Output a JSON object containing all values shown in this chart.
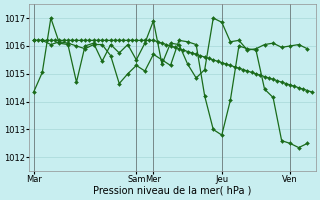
{
  "background_color": "#c8eef0",
  "grid_color": "#a8d8d8",
  "line_color": "#1a6b1a",
  "marker": "D",
  "marker_size": 2.0,
  "linewidth": 0.9,
  "xlabel": "Pression niveau de la mer( hPa )",
  "ylim": [
    1011.5,
    1017.5
  ],
  "yticks": [
    1012,
    1013,
    1014,
    1015,
    1016,
    1017
  ],
  "xlabel_fontsize": 7,
  "tick_fontsize": 6,
  "x_day_labels": [
    "Mar",
    "Sam",
    "Mer",
    "Jeu",
    "Ven"
  ],
  "x_day_positions": [
    0,
    12,
    14,
    22,
    30
  ],
  "xlim": [
    -0.5,
    33
  ],
  "vline_color": "#505050",
  "lines": [
    {
      "x": [
        0,
        0.5,
        1,
        1.5,
        2,
        2.5,
        3,
        3.5,
        4,
        4.5,
        5,
        5.5,
        6,
        6.5,
        7,
        7.5,
        8,
        8.5,
        9,
        9.5,
        10,
        10.5,
        11,
        11.5,
        12,
        12.5,
        13,
        13.5,
        14,
        14.5,
        15,
        15.5,
        16,
        16.5,
        17,
        17.5,
        18,
        18.5,
        19,
        19.5,
        20,
        20.5,
        21,
        21.5,
        22,
        22.5,
        23,
        23.5,
        24,
        24.5,
        25,
        25.5,
        26,
        26.5,
        27,
        27.5,
        28,
        28.5,
        29,
        29.5,
        30,
        30.5,
        31,
        31.5,
        32,
        32.5
      ],
      "y": [
        1016.2,
        1016.2,
        1016.2,
        1016.2,
        1016.2,
        1016.2,
        1016.2,
        1016.2,
        1016.2,
        1016.2,
        1016.2,
        1016.2,
        1016.2,
        1016.2,
        1016.2,
        1016.2,
        1016.2,
        1016.2,
        1016.2,
        1016.2,
        1016.2,
        1016.2,
        1016.2,
        1016.2,
        1016.2,
        1016.2,
        1016.2,
        1016.2,
        1016.2,
        1016.15,
        1016.1,
        1016.05,
        1016.0,
        1015.95,
        1015.9,
        1015.85,
        1015.8,
        1015.75,
        1015.7,
        1015.65,
        1015.6,
        1015.55,
        1015.5,
        1015.45,
        1015.4,
        1015.35,
        1015.3,
        1015.25,
        1015.2,
        1015.15,
        1015.1,
        1015.05,
        1015.0,
        1014.95,
        1014.9,
        1014.85,
        1014.8,
        1014.75,
        1014.7,
        1014.65,
        1014.6,
        1014.55,
        1014.5,
        1014.45,
        1014.4,
        1014.35
      ]
    },
    {
      "x": [
        0,
        1,
        2,
        3,
        4,
        5,
        6,
        7,
        8,
        9,
        10,
        11,
        12,
        13,
        14,
        15,
        16,
        17,
        18,
        19,
        20,
        21,
        22,
        23,
        24,
        25,
        26,
        27,
        28,
        29,
        30,
        31,
        32
      ],
      "y": [
        1014.35,
        1015.05,
        1017.0,
        1016.1,
        1016.05,
        1014.7,
        1016.0,
        1016.1,
        1015.45,
        1016.05,
        1015.75,
        1016.05,
        1015.5,
        1016.1,
        1016.9,
        1015.35,
        1016.1,
        1016.05,
        1015.35,
        1014.85,
        1015.15,
        1017.0,
        1016.85,
        1016.15,
        1016.2,
        1015.85,
        1015.9,
        1016.05,
        1016.1,
        1015.95,
        1016.0,
        1016.05,
        1015.9
      ]
    },
    {
      "x": [
        0,
        1,
        2,
        3,
        4,
        5,
        6,
        7,
        8,
        9,
        10,
        11,
        12,
        13,
        14,
        15,
        16,
        17,
        18,
        19,
        20,
        21,
        22,
        23,
        24,
        25,
        26,
        27,
        28,
        29,
        30,
        31,
        32
      ],
      "y": [
        1016.2,
        1016.2,
        1016.05,
        1016.15,
        1016.1,
        1016.0,
        1015.9,
        1016.05,
        1016.05,
        1015.65,
        1014.65,
        1015.0,
        1015.3,
        1015.1,
        1015.7,
        1015.5,
        1015.3,
        1016.2,
        1016.15,
        1016.05,
        1014.2,
        1013.0,
        1012.8,
        1014.05,
        1016.0,
        1015.9,
        1015.85,
        1014.45,
        1014.15,
        1012.6,
        1012.5,
        1012.35,
        1012.5
      ]
    }
  ]
}
